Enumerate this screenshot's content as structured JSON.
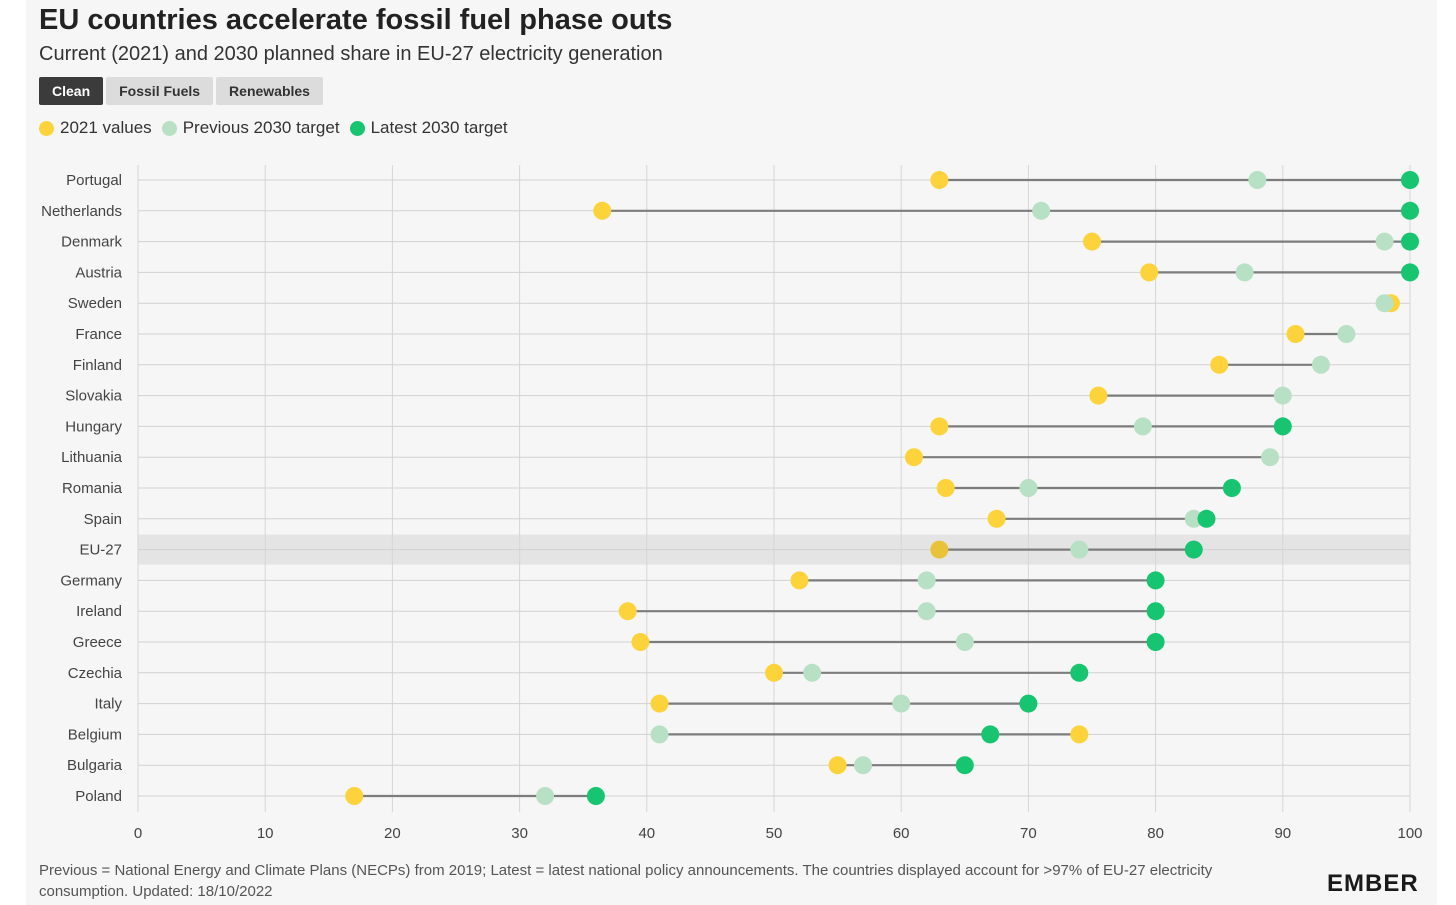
{
  "header": {
    "title": "EU countries accelerate fossil fuel phase outs",
    "subtitle": "Current (2021) and 2030 planned share in EU-27 electricity generation"
  },
  "tabs": [
    {
      "label": "Clean",
      "active": true
    },
    {
      "label": "Fossil Fuels",
      "active": false
    },
    {
      "label": "Renewables",
      "active": false
    }
  ],
  "legend": [
    {
      "label": "2021 values",
      "color": "#fcd33b"
    },
    {
      "label": "Previous 2030 target",
      "color": "#b8e0c4"
    },
    {
      "label": "Latest 2030 target",
      "color": "#17c46f"
    }
  ],
  "chart_data": {
    "type": "dot-range",
    "xlim": [
      0,
      100
    ],
    "xticks": [
      0,
      10,
      20,
      30,
      40,
      50,
      60,
      70,
      80,
      90,
      100
    ],
    "grid": true,
    "highlight": "EU-27",
    "series": [
      {
        "name": "2021 values",
        "key": "v2021",
        "color": "#fcd33b"
      },
      {
        "name": "Previous 2030 target",
        "key": "prev",
        "color": "#b8e0c4"
      },
      {
        "name": "Latest 2030 target",
        "key": "latest",
        "color": "#17c46f"
      }
    ],
    "rows": [
      {
        "country": "Portugal",
        "v2021": 63,
        "prev": 88,
        "latest": 100
      },
      {
        "country": "Netherlands",
        "v2021": 36.5,
        "prev": 71,
        "latest": 100
      },
      {
        "country": "Denmark",
        "v2021": 75,
        "prev": 98,
        "latest": 100
      },
      {
        "country": "Austria",
        "v2021": 79.5,
        "prev": 87,
        "latest": 100
      },
      {
        "country": "Sweden",
        "v2021": 98.5,
        "prev": 98,
        "latest": null
      },
      {
        "country": "France",
        "v2021": 91,
        "prev": 95,
        "latest": null
      },
      {
        "country": "Finland",
        "v2021": 85,
        "prev": 93,
        "latest": null
      },
      {
        "country": "Slovakia",
        "v2021": 75.5,
        "prev": 90,
        "latest": null
      },
      {
        "country": "Hungary",
        "v2021": 63,
        "prev": 79,
        "latest": 90
      },
      {
        "country": "Lithuania",
        "v2021": 61,
        "prev": 89,
        "latest": null
      },
      {
        "country": "Romania",
        "v2021": 63.5,
        "prev": 70,
        "latest": 86
      },
      {
        "country": "Spain",
        "v2021": 67.5,
        "prev": 83,
        "latest": 84
      },
      {
        "country": "EU-27",
        "v2021": 63,
        "prev": 74,
        "latest": 83
      },
      {
        "country": "Germany",
        "v2021": 52,
        "prev": 62,
        "latest": 80
      },
      {
        "country": "Ireland",
        "v2021": 38.5,
        "prev": 62,
        "latest": 80
      },
      {
        "country": "Greece",
        "v2021": 39.5,
        "prev": 65,
        "latest": 80
      },
      {
        "country": "Czechia",
        "v2021": 50,
        "prev": 53,
        "latest": 74
      },
      {
        "country": "Italy",
        "v2021": 41,
        "prev": 60,
        "latest": 70
      },
      {
        "country": "Belgium",
        "v2021": 74,
        "prev": 41,
        "latest": 67
      },
      {
        "country": "Bulgaria",
        "v2021": 55,
        "prev": 57,
        "latest": 65
      },
      {
        "country": "Poland",
        "v2021": 17,
        "prev": 32,
        "latest": 36
      }
    ]
  },
  "footnote": "Previous = National Energy and Climate Plans (NECPs) from 2019; Latest = latest national policy announcements. The countries displayed account for >97% of EU-27 electricity consumption. Updated: 18/10/2022",
  "logo": "EMBER"
}
